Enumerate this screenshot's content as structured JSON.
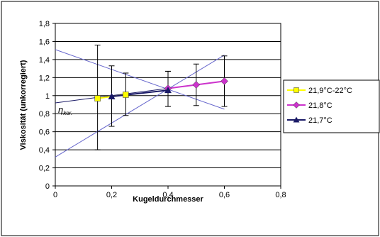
{
  "chart_data": {
    "type": "scatter",
    "xlabel": "Kugeldurchmesser",
    "ylabel": "Viskosität (unkorregiert)",
    "xlim": [
      0,
      0.8
    ],
    "ylim": [
      0,
      1.8
    ],
    "x_ticks": [
      "0",
      "0,2",
      "0,4",
      "0,6",
      "0,8"
    ],
    "y_ticks": [
      "0",
      "0,2",
      "0,4",
      "0,6",
      "0,8",
      "1",
      "1,2",
      "1,4",
      "1,6",
      "1,8"
    ],
    "grid": "horizontal",
    "legend_position": "right",
    "annotation": {
      "text": "η",
      "subscript": "kor.",
      "x": 0,
      "y": 0.92
    },
    "series": [
      {
        "name": "21,9°C-22°C",
        "color": "#ffff00",
        "marker": "square",
        "points": [
          {
            "x": 0.15,
            "y": 0.97,
            "err_low": 0.4,
            "err_high": 1.56
          },
          {
            "x": 0.25,
            "y": 1.01,
            "err_low": 0.78,
            "err_high": 1.25
          }
        ]
      },
      {
        "name": "21,8°C",
        "color": "#cc33cc",
        "marker": "diamond",
        "points": [
          {
            "x": 0.4,
            "y": 1.08,
            "err_low": 0.88,
            "err_high": 1.27
          },
          {
            "x": 0.5,
            "y": 1.12,
            "err_low": 0.89,
            "err_high": 1.35
          },
          {
            "x": 0.6,
            "y": 1.16,
            "err_low": 0.88,
            "err_high": 1.44
          }
        ]
      },
      {
        "name": "21,7°C",
        "color": "#1a1a66",
        "marker": "triangle",
        "points": [
          {
            "x": 0.2,
            "y": 0.99,
            "err_low": 0.66,
            "err_high": 1.33
          },
          {
            "x": 0.4,
            "y": 1.06,
            "err_low": 0.88,
            "err_high": 1.27
          }
        ]
      }
    ],
    "trend_lines": [
      {
        "color": "#1a1a66",
        "x1": 0,
        "y1": 0.92,
        "x2": 0.6,
        "y2": 1.16
      },
      {
        "color": "#6666cc",
        "x1": 0,
        "y1": 1.51,
        "x2": 0.6,
        "y2": 0.85
      },
      {
        "color": "#6666cc",
        "x1": 0,
        "y1": 0.32,
        "x2": 0.6,
        "y2": 1.45
      }
    ]
  }
}
